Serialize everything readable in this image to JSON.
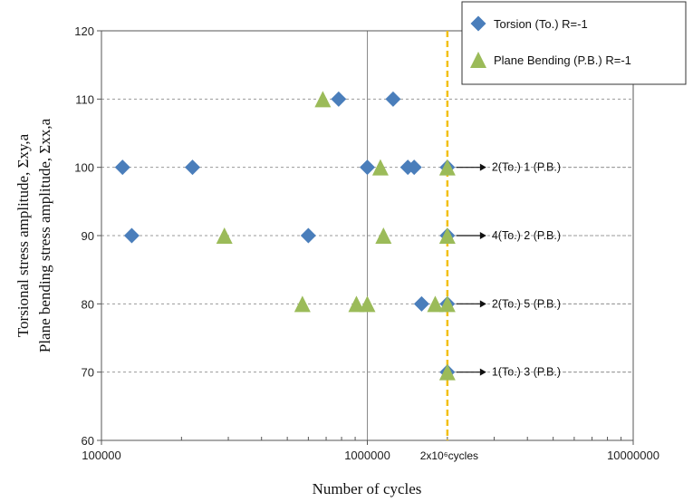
{
  "chart_data": {
    "type": "scatter",
    "xscale": "log",
    "xlim": [
      100000,
      10000000
    ],
    "ylim": [
      60,
      120
    ],
    "xlabel": "Number of cycles",
    "ylabel_line1": "Torsional stress amplitude,  Σxy,a",
    "ylabel_line2": "Plane bending stress amplitude, Σxx,a",
    "x_ticks": [
      {
        "value": 100000,
        "label": "100000"
      },
      {
        "value": 1000000,
        "label": "1000000"
      },
      {
        "value": 10000000,
        "label": "10000000"
      }
    ],
    "y_ticks": [
      60,
      70,
      80,
      90,
      100,
      110,
      120
    ],
    "y_tick_labels": [
      "60",
      "70",
      "80",
      "90",
      "100",
      "110",
      "120"
    ],
    "grid": "dashed horizontal gridlines, solid major vertical lines",
    "legend_position": "top-right",
    "series": [
      {
        "name": "Torsion (To.) R=-1",
        "marker": "diamond",
        "color": "#4A7EBB",
        "points": [
          [
            120000,
            100
          ],
          [
            220000,
            100
          ],
          [
            1000000,
            100
          ],
          [
            1420000,
            100
          ],
          [
            1500000,
            100
          ],
          [
            2000000,
            100
          ],
          [
            130000,
            90
          ],
          [
            600000,
            90
          ],
          [
            2000000,
            90
          ],
          [
            780000,
            110
          ],
          [
            1250000,
            110
          ],
          [
            1600000,
            80
          ],
          [
            2000000,
            80
          ],
          [
            2000000,
            70
          ]
        ]
      },
      {
        "name": "Plane Bending (P.B.) R=-1",
        "marker": "triangle",
        "color": "#9BBB59",
        "points": [
          [
            680000,
            110
          ],
          [
            1120000,
            100
          ],
          [
            2000000,
            100
          ],
          [
            290000,
            90
          ],
          [
            1150000,
            90
          ],
          [
            2000000,
            90
          ],
          [
            570000,
            80
          ],
          [
            910000,
            80
          ],
          [
            1000000,
            80
          ],
          [
            1800000,
            80
          ],
          [
            2000000,
            80
          ],
          [
            2000000,
            70
          ]
        ]
      }
    ],
    "runout_line": {
      "x": 2000000,
      "label": "2x10⁶cycles",
      "color": "#F2C014"
    },
    "annotations": [
      {
        "y": 100,
        "text": "2(To.) 1 (P.B.)"
      },
      {
        "y": 90,
        "text": "4(To.) 2 (P.B.)"
      },
      {
        "y": 80,
        "text": "2(To.) 5 (P.B.)"
      },
      {
        "y": 70,
        "text": "1(To.) 3 (P.B.)"
      }
    ]
  }
}
